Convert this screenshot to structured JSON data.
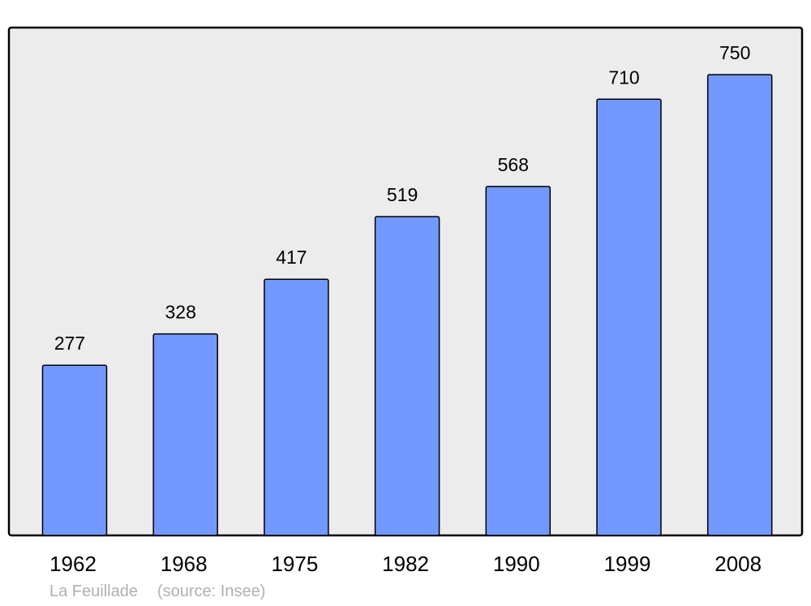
{
  "chart_data": {
    "type": "bar",
    "categories": [
      "1962",
      "1968",
      "1975",
      "1982",
      "1990",
      "1999",
      "2008"
    ],
    "values": [
      277,
      328,
      417,
      519,
      568,
      710,
      750
    ],
    "title": "",
    "xlabel": "",
    "ylabel": "",
    "ylim": [
      0,
      750
    ],
    "grid": false,
    "colors": {
      "bar": "#7399ff",
      "background": "#ececec",
      "frame": "#000000"
    }
  },
  "footer": {
    "place": "La Feuillade",
    "source": "(source: Insee)"
  }
}
